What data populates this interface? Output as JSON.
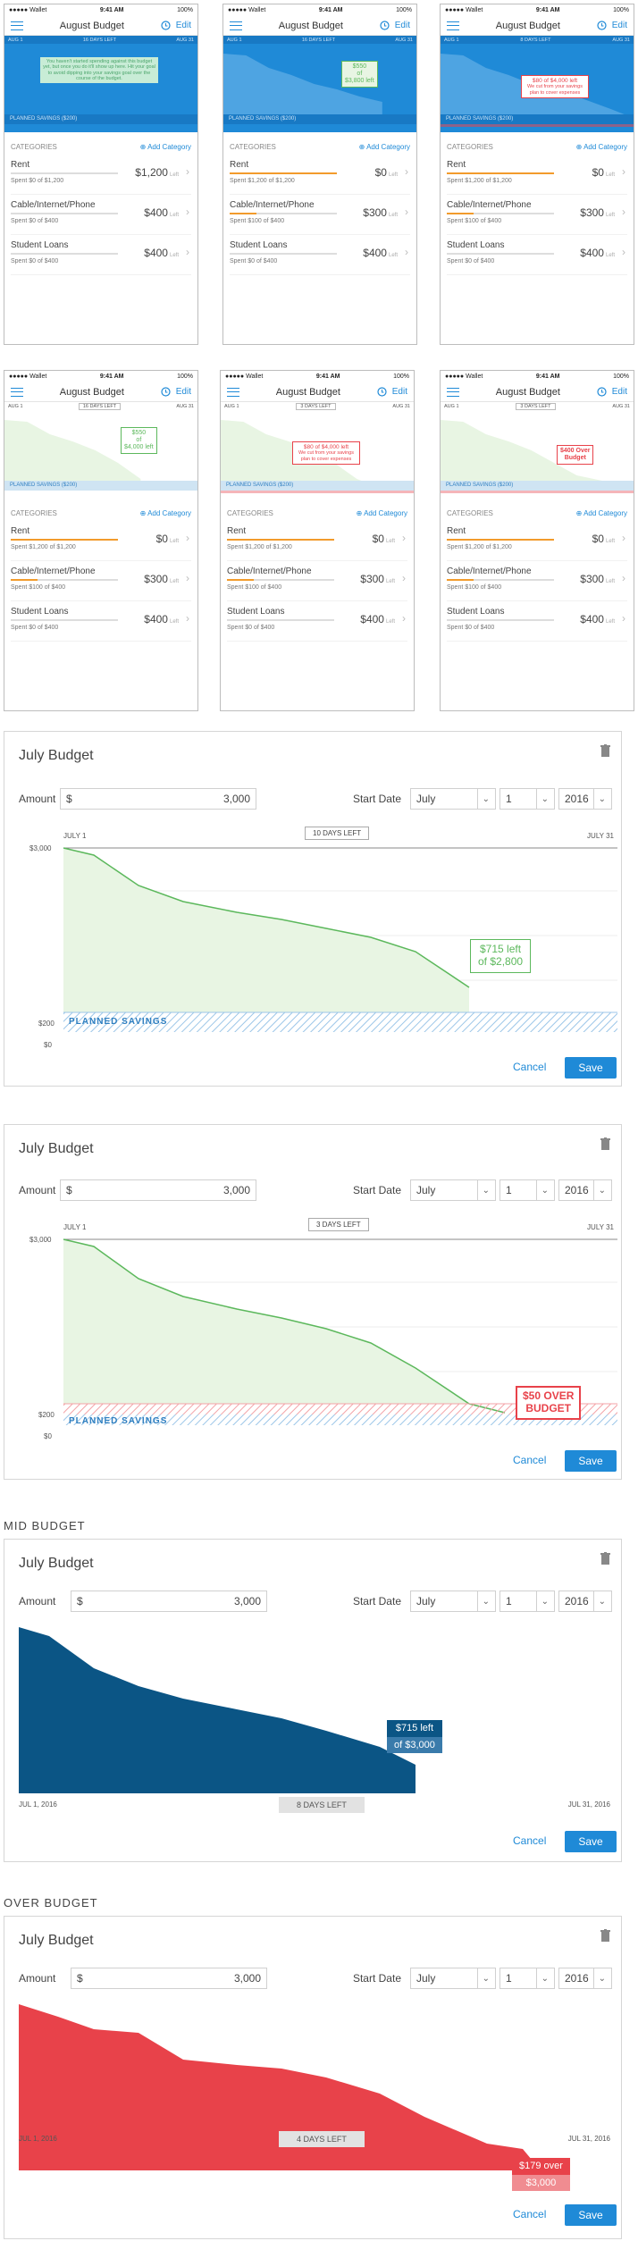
{
  "phones": [
    {
      "time": "9:41 AM",
      "carrier": "Wallet",
      "battery": "100%",
      "title": "August Budget",
      "edit": "Edit",
      "start": "AUG 1",
      "days": "16 DAYS LEFT",
      "end": "AUG 31",
      "plan": "PLANNED SAVINGS ($200)",
      "bubble": "You haven't started spending against this budget yet, but once you do it'll show up here. Hit your goal to avoid dipping into your savings goal over the course of the budget.",
      "cats_label": "CATEGORIES",
      "add": "Add Category",
      "cats": [
        {
          "name": "Rent",
          "value": "$1,200",
          "unit": "Left",
          "spent": "Spent $0 of $1,200",
          "fill": 0
        },
        {
          "name": "Cable/Internet/Phone",
          "value": "$400",
          "unit": "Left",
          "spent": "Spent $0 of $400",
          "fill": 0
        },
        {
          "name": "Student Loans",
          "value": "$400",
          "unit": "Left",
          "spent": "Spent $0 of $400",
          "fill": 0
        }
      ]
    },
    {
      "time": "9:41 AM",
      "carrier": "Wallet",
      "battery": "100%",
      "title": "August Budget",
      "edit": "Edit",
      "start": "AUG 1",
      "days": "16 DAYS LEFT",
      "end": "AUG 31",
      "plan": "PLANNED SAVINGS ($200)",
      "bubble_a": "$550",
      "bubble_b": "of",
      "bubble_c": "$3,800 left",
      "cats_label": "CATEGORIES",
      "add": "Add Category",
      "cats": [
        {
          "name": "Rent",
          "value": "$0",
          "unit": "Left",
          "spent": "Spent $1,200 of $1,200",
          "fill": 1
        },
        {
          "name": "Cable/Internet/Phone",
          "value": "$300",
          "unit": "Left",
          "spent": "Spent $100 of $400",
          "fill": 0.25
        },
        {
          "name": "Student Loans",
          "value": "$400",
          "unit": "Left",
          "spent": "Spent $0 of $400",
          "fill": 0
        }
      ]
    },
    {
      "time": "9:41 AM",
      "carrier": "Wallet",
      "battery": "100%",
      "title": "August Budget",
      "edit": "Edit",
      "start": "AUG 1",
      "days": "8 DAYS LEFT",
      "end": "AUG 31",
      "plan": "PLANNED SAVINGS ($200)",
      "bubble_a": "$80 of $4,000 left",
      "bubble_b": "We cut from your savings plan to cover expenses",
      "cats_label": "CATEGORIES",
      "add": "Add Category",
      "cats": [
        {
          "name": "Rent",
          "value": "$0",
          "unit": "Left",
          "spent": "Spent $1,200 of $1,200",
          "fill": 1
        },
        {
          "name": "Cable/Internet/Phone",
          "value": "$300",
          "unit": "Left",
          "spent": "Spent $100 of $400",
          "fill": 0.25
        },
        {
          "name": "Student Loans",
          "value": "$400",
          "unit": "Left",
          "spent": "Spent $0 of $400",
          "fill": 0
        }
      ]
    },
    {
      "time": "9:41 AM",
      "carrier": "Wallet",
      "battery": "100%",
      "title": "August Budget",
      "edit": "Edit",
      "start": "AUG 1",
      "days": "16 DAYS LEFT",
      "end": "AUG 31",
      "plan": "PLANNED SAVINGS ($200)",
      "bubble_a": "$550",
      "bubble_b": "of",
      "bubble_c": "$4,000 left",
      "cats_label": "CATEGORIES",
      "add": "Add Category",
      "cats": [
        {
          "name": "Rent",
          "value": "$0",
          "unit": "Left",
          "spent": "Spent $1,200 of $1,200",
          "fill": 1
        },
        {
          "name": "Cable/Internet/Phone",
          "value": "$300",
          "unit": "Left",
          "spent": "Spent $100 of $400",
          "fill": 0.25
        },
        {
          "name": "Student Loans",
          "value": "$400",
          "unit": "Left",
          "spent": "Spent $0 of $400",
          "fill": 0
        }
      ]
    },
    {
      "time": "9:41 AM",
      "carrier": "Wallet",
      "battery": "100%",
      "title": "August Budget",
      "edit": "Edit",
      "start": "AUG 1",
      "days": "3 DAYS LEFT",
      "end": "AUG 31",
      "plan": "PLANNED SAVINGS ($200)",
      "bubble_a": "$80 of $4,000 left",
      "bubble_b": "We cut from your savings plan to cover expenses",
      "cats_label": "CATEGORIES",
      "add": "Add Category",
      "cats": [
        {
          "name": "Rent",
          "value": "$0",
          "unit": "Left",
          "spent": "Spent $1,200 of $1,200",
          "fill": 1
        },
        {
          "name": "Cable/Internet/Phone",
          "value": "$300",
          "unit": "Left",
          "spent": "Spent $100 of $400",
          "fill": 0.25
        },
        {
          "name": "Student Loans",
          "value": "$400",
          "unit": "Left",
          "spent": "Spent $0 of $400",
          "fill": 0
        }
      ]
    },
    {
      "time": "9:41 AM",
      "carrier": "Wallet",
      "battery": "100%",
      "title": "August Budget",
      "edit": "Edit",
      "start": "AUG 1",
      "days": "3 DAYS LEFT",
      "end": "AUG 31",
      "plan": "PLANNED SAVINGS ($200)",
      "bubble_a": "$400 Over",
      "bubble_b": "Budget",
      "cats_label": "CATEGORIES",
      "add": "Add Category",
      "cats": [
        {
          "name": "Rent",
          "value": "$0",
          "unit": "Left",
          "spent": "Spent $1,200 of $1,200",
          "fill": 1
        },
        {
          "name": "Cable/Internet/Phone",
          "value": "$300",
          "unit": "Left",
          "spent": "Spent $100 of $400",
          "fill": 0.25
        },
        {
          "name": "Student Loans",
          "value": "$400",
          "unit": "Left",
          "spent": "Spent $0 of $400",
          "fill": 0
        }
      ]
    }
  ],
  "desktop": [
    {
      "title": "July Budget",
      "amount_label": "Amount",
      "currency": "$",
      "amount": "3,000",
      "start_label": "Start Date",
      "month": "July",
      "day": "1",
      "year": "2016",
      "start": "JULY 1",
      "days": "10 DAYS LEFT",
      "end": "JULY 31",
      "ymax": "$3,000",
      "y200": "$200",
      "y0": "$0",
      "plan": "PLANNED SAVINGS",
      "bubble_a": "$715 left",
      "bubble_b": "of $2,800",
      "cancel": "Cancel",
      "save": "Save"
    },
    {
      "title": "July Budget",
      "amount_label": "Amount",
      "currency": "$",
      "amount": "3,000",
      "start_label": "Start Date",
      "month": "July",
      "day": "1",
      "year": "2016",
      "start": "JULY 1",
      "days": "3 DAYS LEFT",
      "end": "JULY 31",
      "ymax": "$3,000",
      "y200": "$200",
      "y0": "$0",
      "plan": "PLANNED SAVINGS",
      "bubble_a": "$50 OVER",
      "bubble_b": "BUDGET",
      "cancel": "Cancel",
      "save": "Save"
    }
  ],
  "mid": {
    "section": "MID BUDGET",
    "title": "July Budget",
    "amount_label": "Amount",
    "currency": "$",
    "amount": "3,000",
    "start_label": "Start Date",
    "month": "July",
    "day": "1",
    "year": "2016",
    "start": "JUL 1, 2016",
    "days": "8 DAYS LEFT",
    "end": "JUL 31, 2016",
    "bubble_a": "$715 left",
    "bubble_b": "of $3,000",
    "cancel": "Cancel",
    "save": "Save"
  },
  "over": {
    "section": "OVER BUDGET",
    "title": "July Budget",
    "amount_label": "Amount",
    "currency": "$",
    "amount": "3,000",
    "start_label": "Start Date",
    "month": "July",
    "day": "1",
    "year": "2016",
    "start": "JUL 1, 2016",
    "days": "4 DAYS LEFT",
    "end": "JUL 31, 2016",
    "bubble_a": "$179 over",
    "bubble_b": "$3,000",
    "cancel": "Cancel",
    "save": "Save"
  },
  "colors": {
    "accent": "#1f8ad7",
    "green": "#5cb85c",
    "green_fill": "#e8f5e3",
    "navy": "#0b5585",
    "red": "#e8424a",
    "orange": "#f29b2c"
  }
}
